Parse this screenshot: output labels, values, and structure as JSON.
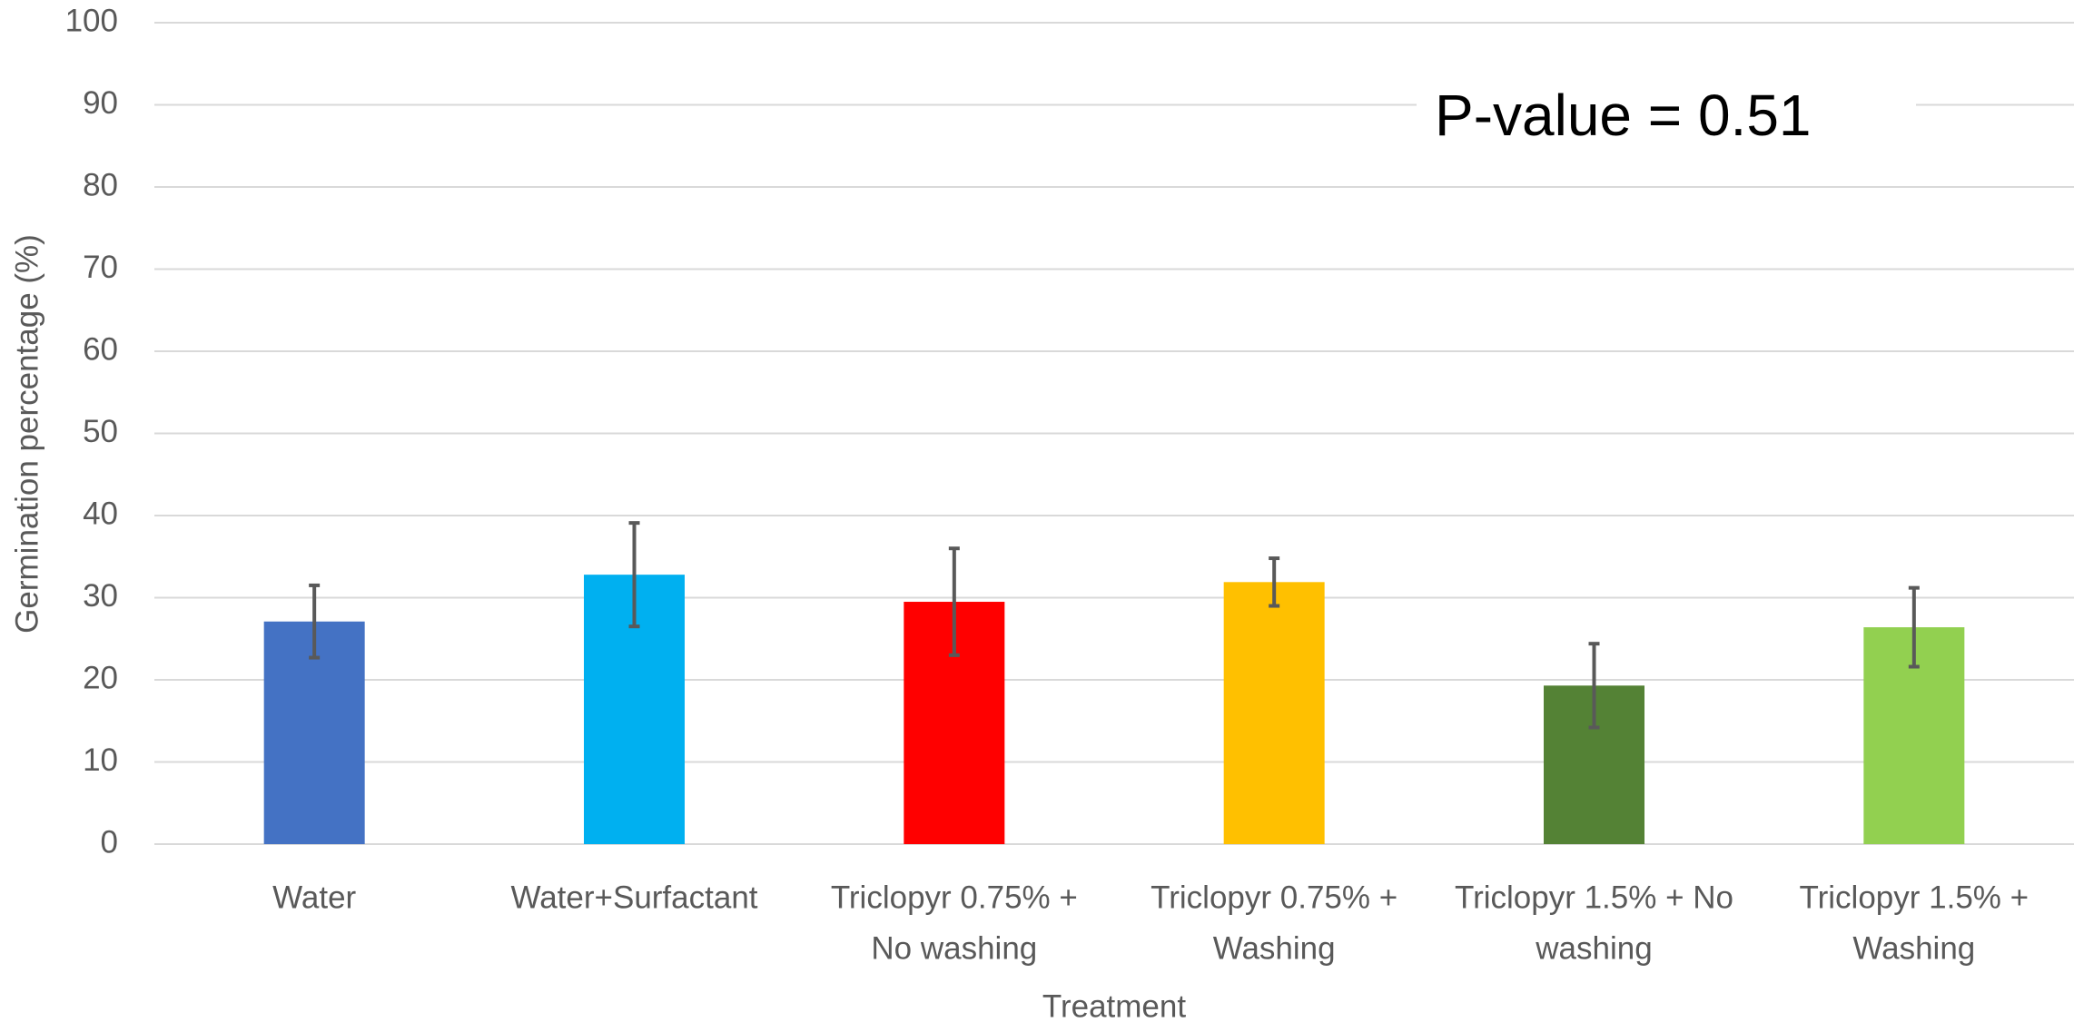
{
  "chart_data": {
    "type": "bar",
    "annotation": "P-value = 0.51",
    "x_label": "Treatment",
    "y_label": "Germination percentage (%)",
    "categories": [
      [
        "Water"
      ],
      [
        "Water+Surfactant"
      ],
      [
        "Triclopyr 0.75% +",
        "No washing"
      ],
      [
        "Triclopyr 0.75% +",
        "Washing"
      ],
      [
        "Triclopyr 1.5% + No",
        "washing"
      ],
      [
        "Triclopyr 1.5% +",
        "Washing"
      ]
    ],
    "values": [
      27.1,
      32.8,
      29.5,
      31.9,
      19.3,
      26.4
    ],
    "errors": [
      4.4,
      6.3,
      6.5,
      2.9,
      5.1,
      4.8
    ],
    "colors": [
      "#4472c4",
      "#00b0f0",
      "#ff0000",
      "#ffc000",
      "#548235",
      "#92d050"
    ],
    "error_color": "#595959",
    "ylim": [
      0,
      100
    ],
    "yticks": [
      0,
      10,
      20,
      30,
      40,
      50,
      60,
      70,
      80,
      90,
      100
    ],
    "grid": true
  }
}
